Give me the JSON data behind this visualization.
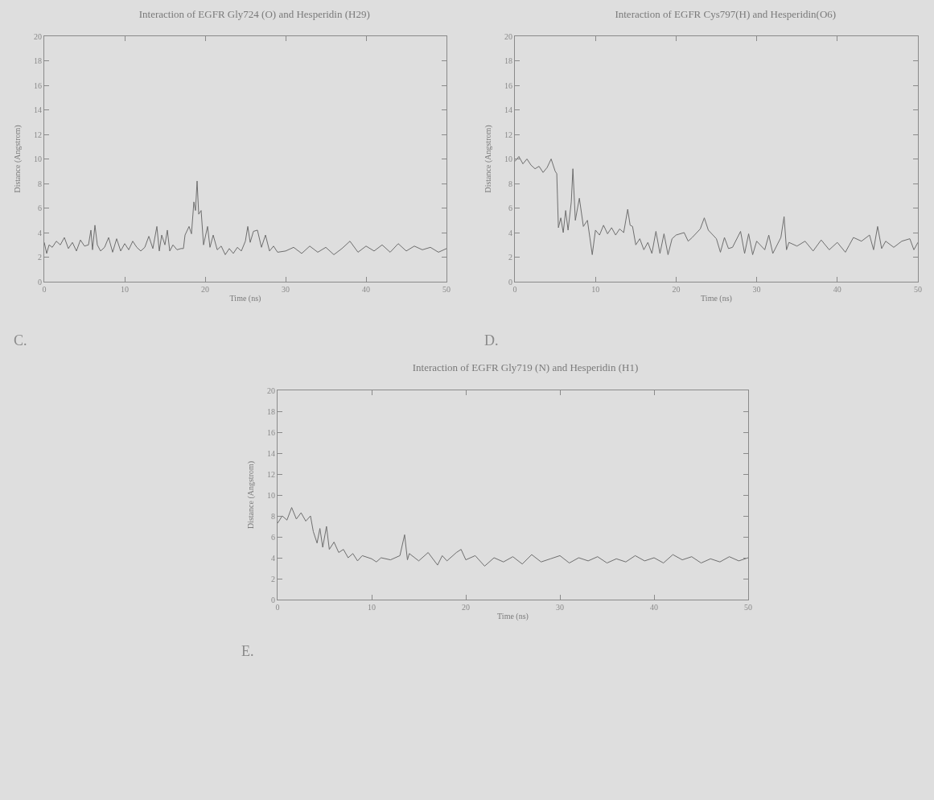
{
  "chart_data": [
    {
      "type": "line",
      "title": "Interaction of EGFR Gly724 (O) and Hesperidin (H29)",
      "xlabel": "Time (ns)",
      "ylabel": "Distance (Angstrom)",
      "color": "#6e6e6e",
      "xlim": [
        0,
        50
      ],
      "ylim": [
        0,
        20
      ],
      "xticks": [
        0,
        10,
        20,
        30,
        40,
        50
      ],
      "yticks": [
        0,
        2,
        4,
        6,
        8,
        10,
        12,
        14,
        16,
        18,
        20
      ],
      "annotations": [
        "C."
      ],
      "x": [
        0,
        0.3,
        0.6,
        1,
        1.5,
        2,
        2.5,
        3,
        3.5,
        4,
        4.5,
        5,
        5.5,
        5.8,
        6,
        6.3,
        6.6,
        7,
        7.5,
        8,
        8.5,
        9,
        9.5,
        10,
        10.5,
        11,
        11.5,
        12,
        12.5,
        13,
        13.5,
        14,
        14.3,
        14.6,
        15,
        15.3,
        15.6,
        16,
        16.5,
        17,
        17.3,
        17.5,
        18,
        18.3,
        18.6,
        18.8,
        19,
        19.2,
        19.5,
        19.8,
        20.3,
        20.6,
        21,
        21.5,
        22,
        22.5,
        23,
        23.5,
        24,
        24.5,
        25,
        25.3,
        25.6,
        26,
        26.5,
        27,
        27.5,
        28,
        28.5,
        29,
        30,
        31,
        32,
        33,
        34,
        35,
        36,
        37,
        38,
        39,
        40,
        41,
        42,
        43,
        44,
        45,
        46,
        47,
        48,
        49,
        50
      ],
      "values": [
        3.2,
        2.3,
        3.0,
        2.8,
        3.3,
        3.0,
        3.6,
        2.7,
        3.2,
        2.5,
        3.4,
        2.9,
        3.0,
        4.2,
        2.6,
        4.6,
        3.0,
        2.5,
        2.8,
        3.6,
        2.4,
        3.5,
        2.5,
        3.1,
        2.6,
        3.3,
        2.8,
        2.5,
        2.8,
        3.7,
        2.7,
        4.5,
        2.5,
        3.8,
        3.0,
        4.2,
        2.5,
        3.0,
        2.6,
        2.7,
        2.7,
        3.8,
        4.5,
        3.9,
        6.5,
        5.8,
        8.2,
        5.5,
        5.8,
        3.0,
        4.5,
        2.8,
        3.8,
        2.6,
        2.9,
        2.2,
        2.7,
        2.3,
        2.8,
        2.5,
        3.3,
        4.5,
        3.2,
        4.1,
        4.2,
        2.8,
        3.8,
        2.5,
        2.9,
        2.4,
        2.5,
        2.8,
        2.3,
        2.9,
        2.4,
        2.8,
        2.2,
        2.7,
        3.3,
        2.4,
        2.9,
        2.5,
        3.0,
        2.4,
        3.1,
        2.5,
        2.9,
        2.6,
        2.8,
        2.4,
        2.7
      ]
    },
    {
      "type": "line",
      "title": "Interaction of EGFR Cys797(H) and Hesperidin(O6)",
      "xlabel": "Time (ns)",
      "ylabel": "Distance (Angstrom)",
      "color": "#6e6e6e",
      "xlim": [
        0,
        50
      ],
      "ylim": [
        0,
        20
      ],
      "xticks": [
        0,
        10,
        20,
        30,
        40,
        50
      ],
      "yticks": [
        0,
        2,
        4,
        6,
        8,
        10,
        12,
        14,
        16,
        18,
        20
      ],
      "annotations": [
        "D."
      ],
      "x": [
        0,
        0.5,
        1,
        1.5,
        2,
        2.5,
        3,
        3.5,
        4,
        4.5,
        5,
        5.2,
        5.4,
        5.7,
        6,
        6.3,
        6.6,
        7,
        7.2,
        7.5,
        8,
        8.5,
        9,
        9.3,
        9.6,
        10,
        10.5,
        11,
        11.5,
        12,
        12.5,
        13,
        13.5,
        14,
        14.3,
        14.6,
        15,
        15.5,
        16,
        16.5,
        17,
        17.5,
        18,
        18.5,
        19,
        19.5,
        20,
        21,
        21.5,
        22,
        23,
        23.5,
        24,
        25,
        25.5,
        26,
        26.5,
        27,
        28,
        28.5,
        29,
        29.5,
        30,
        31,
        31.5,
        32,
        33,
        33.4,
        33.7,
        34,
        35,
        36,
        37,
        38,
        39,
        40,
        41,
        41.5,
        42,
        43,
        44,
        44.5,
        45,
        45.5,
        46,
        47,
        48,
        49,
        49.5,
        50
      ],
      "values": [
        9.8,
        10.2,
        9.6,
        10.0,
        9.5,
        9.2,
        9.4,
        8.9,
        9.3,
        10.0,
        9.0,
        8.8,
        4.4,
        5.2,
        4.0,
        5.8,
        4.2,
        6.5,
        9.2,
        5.0,
        6.8,
        4.5,
        5.0,
        3.6,
        2.2,
        4.2,
        3.8,
        4.6,
        3.9,
        4.4,
        3.8,
        4.3,
        4.0,
        5.9,
        4.6,
        4.5,
        3.0,
        3.5,
        2.6,
        3.2,
        2.3,
        4.1,
        2.3,
        3.9,
        2.2,
        3.5,
        3.8,
        4.0,
        3.3,
        3.6,
        4.3,
        5.2,
        4.2,
        3.5,
        2.4,
        3.6,
        2.7,
        2.8,
        4.1,
        2.3,
        3.9,
        2.2,
        3.3,
        2.6,
        3.8,
        2.3,
        3.6,
        5.3,
        2.6,
        3.2,
        2.9,
        3.3,
        2.5,
        3.4,
        2.6,
        3.2,
        2.4,
        3.0,
        3.6,
        3.3,
        3.8,
        2.6,
        4.5,
        2.7,
        3.3,
        2.8,
        3.3,
        3.5,
        2.6,
        3.2
      ]
    },
    {
      "type": "line",
      "title": "Interaction of EGFR Gly719 (N) and Hesperidin (H1)",
      "xlabel": "Time (ns)",
      "ylabel": "Distance (Angstrom)",
      "color": "#6e6e6e",
      "xlim": [
        0,
        50
      ],
      "ylim": [
        0,
        20
      ],
      "xticks": [
        0,
        10,
        20,
        30,
        40,
        50
      ],
      "yticks": [
        0,
        2,
        4,
        6,
        8,
        10,
        12,
        14,
        16,
        18,
        20
      ],
      "annotations": [
        "E."
      ],
      "x": [
        0,
        0.5,
        1,
        1.5,
        2,
        2.5,
        3,
        3.5,
        3.8,
        4.2,
        4.5,
        4.8,
        5.2,
        5.5,
        6,
        6.5,
        7,
        7.5,
        8,
        8.5,
        9,
        10,
        10.5,
        11,
        12,
        13,
        13.5,
        13.8,
        14,
        15,
        16,
        17,
        17.5,
        18,
        19,
        19.5,
        20,
        21,
        22,
        23,
        24,
        25,
        26,
        27,
        28,
        29,
        30,
        31,
        32,
        33,
        34,
        35,
        36,
        37,
        38,
        39,
        40,
        41,
        42,
        43,
        44,
        45,
        46,
        47,
        48,
        49,
        50
      ],
      "values": [
        7.3,
        8.0,
        7.6,
        8.8,
        7.7,
        8.3,
        7.5,
        8.0,
        6.5,
        5.4,
        6.8,
        5.0,
        7.0,
        4.8,
        5.5,
        4.5,
        4.8,
        4.0,
        4.4,
        3.7,
        4.2,
        3.9,
        3.6,
        4.0,
        3.8,
        4.2,
        6.2,
        3.8,
        4.4,
        3.7,
        4.5,
        3.3,
        4.2,
        3.7,
        4.5,
        4.8,
        3.8,
        4.2,
        3.2,
        4.0,
        3.6,
        4.1,
        3.4,
        4.3,
        3.6,
        3.9,
        4.2,
        3.5,
        4.0,
        3.7,
        4.1,
        3.5,
        3.9,
        3.6,
        4.2,
        3.7,
        4.0,
        3.5,
        4.3,
        3.8,
        4.1,
        3.5,
        3.9,
        3.6,
        4.1,
        3.7,
        4.0
      ]
    }
  ]
}
